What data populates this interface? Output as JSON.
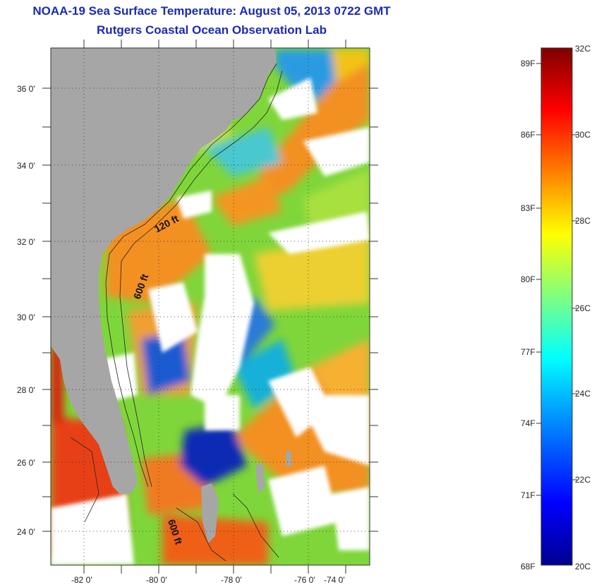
{
  "header": {
    "title": "NOAA-19 Sea Surface Temperature:  August 05, 2013 0722 GMT",
    "subtitle": "Rutgers Coastal Ocean Observation Lab"
  },
  "map": {
    "lat_labels": [
      "36 0'",
      "34 0'",
      "32 0'",
      "30 0'",
      "28 0'",
      "26 0'",
      "24 0'"
    ],
    "lon_labels": [
      "-82 0'",
      "-80 0'",
      "-78 0'",
      "-76 0'",
      "-74 0'"
    ],
    "isobath_labels": [
      "120 ft",
      "600 ft",
      "600 ft"
    ],
    "colors": {
      "land": "#a6a6a6",
      "cloud": "#ffffff",
      "warm": "#f39020",
      "cool": "#0a2bb5"
    }
  },
  "colorbar": {
    "fahrenheit": [
      "89F",
      "86F",
      "83F",
      "80F",
      "77F",
      "74F",
      "71F",
      "68F"
    ],
    "celsius": [
      "32C",
      "30C",
      "28C",
      "26C",
      "24C",
      "22C",
      "20C"
    ],
    "colors": [
      "#00008f",
      "#0000ff",
      "#00a0ff",
      "#00ffff",
      "#80ff80",
      "#ffff00",
      "#ff8000",
      "#ff0000",
      "#800000"
    ]
  }
}
